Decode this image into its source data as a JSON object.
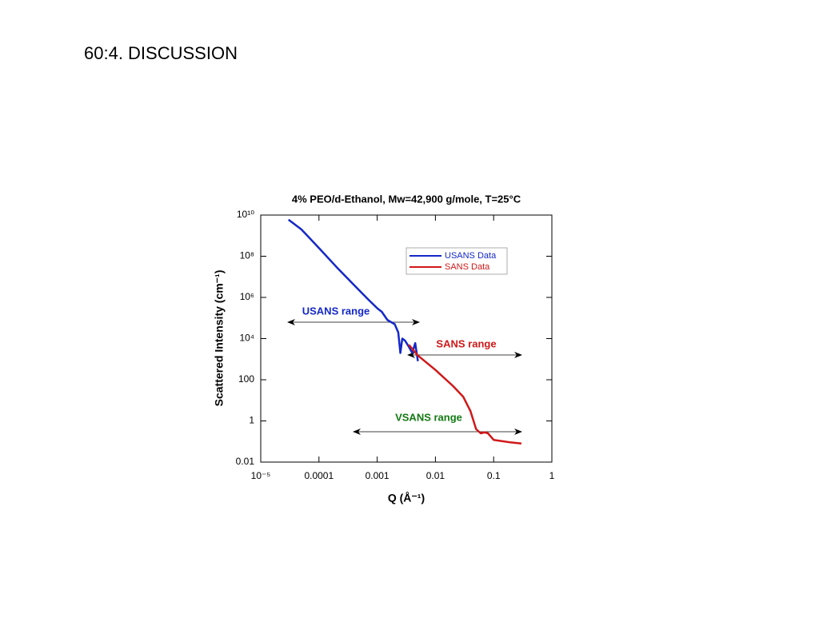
{
  "heading": "60:4. DISCUSSION",
  "chart_data": {
    "type": "line",
    "title": "4% PEO/d-Ethanol, Mw=42,900 g/mole, T=25°C",
    "x_label": "Q (Å⁻¹)",
    "y_label": "Scattered Intensity (cm⁻¹)",
    "x_log": true,
    "y_log": true,
    "xlim": [
      1e-05,
      1
    ],
    "xticks": [
      {
        "value": 1e-05,
        "label": "10⁻⁵"
      },
      0.0001,
      0.001,
      0.01,
      0.1,
      1
    ],
    "ylim": [
      0.01,
      10000000000
    ],
    "yticks": [
      0.01,
      1,
      100,
      {
        "value": 10000,
        "label": "10⁴"
      },
      {
        "value": 1000000,
        "label": "10⁶"
      },
      {
        "value": 100000000,
        "label": "10⁸"
      },
      {
        "value": 10000000000,
        "label": "10¹⁰"
      }
    ],
    "grid": false,
    "legend": "upper right",
    "series": [
      {
        "name": "USANS Data",
        "color": "#1428c8",
        "x": [
          3e-05,
          5e-05,
          0.0001,
          0.0002,
          0.0004,
          0.0007,
          0.001,
          0.0012,
          0.0015,
          0.002,
          0.0023,
          0.0025,
          0.0027,
          0.003,
          0.0035,
          0.004,
          0.0045,
          0.005
        ],
        "values": [
          6000000000,
          2000000000,
          250000000,
          30000000,
          4000000,
          800000,
          300000,
          200000,
          80000,
          50000,
          20000,
          2000,
          10000,
          8000,
          4000,
          2000,
          6000,
          800
        ]
      },
      {
        "name": "SANS Data",
        "color": "#d01818",
        "x": [
          0.0035,
          0.005,
          0.01,
          0.02,
          0.03,
          0.04,
          0.05,
          0.06,
          0.07,
          0.08,
          0.1,
          0.2,
          0.3
        ],
        "values": [
          5000,
          1500,
          300,
          50,
          15,
          3,
          0.4,
          0.25,
          0.28,
          0.25,
          0.12,
          0.09,
          0.08
        ]
      }
    ],
    "annotations": [
      {
        "text": "USANS range",
        "color": "#1428c8"
      },
      {
        "text": "SANS range",
        "color": "#d01818"
      },
      {
        "text": "VSANS range",
        "color": "#127a12"
      }
    ]
  }
}
